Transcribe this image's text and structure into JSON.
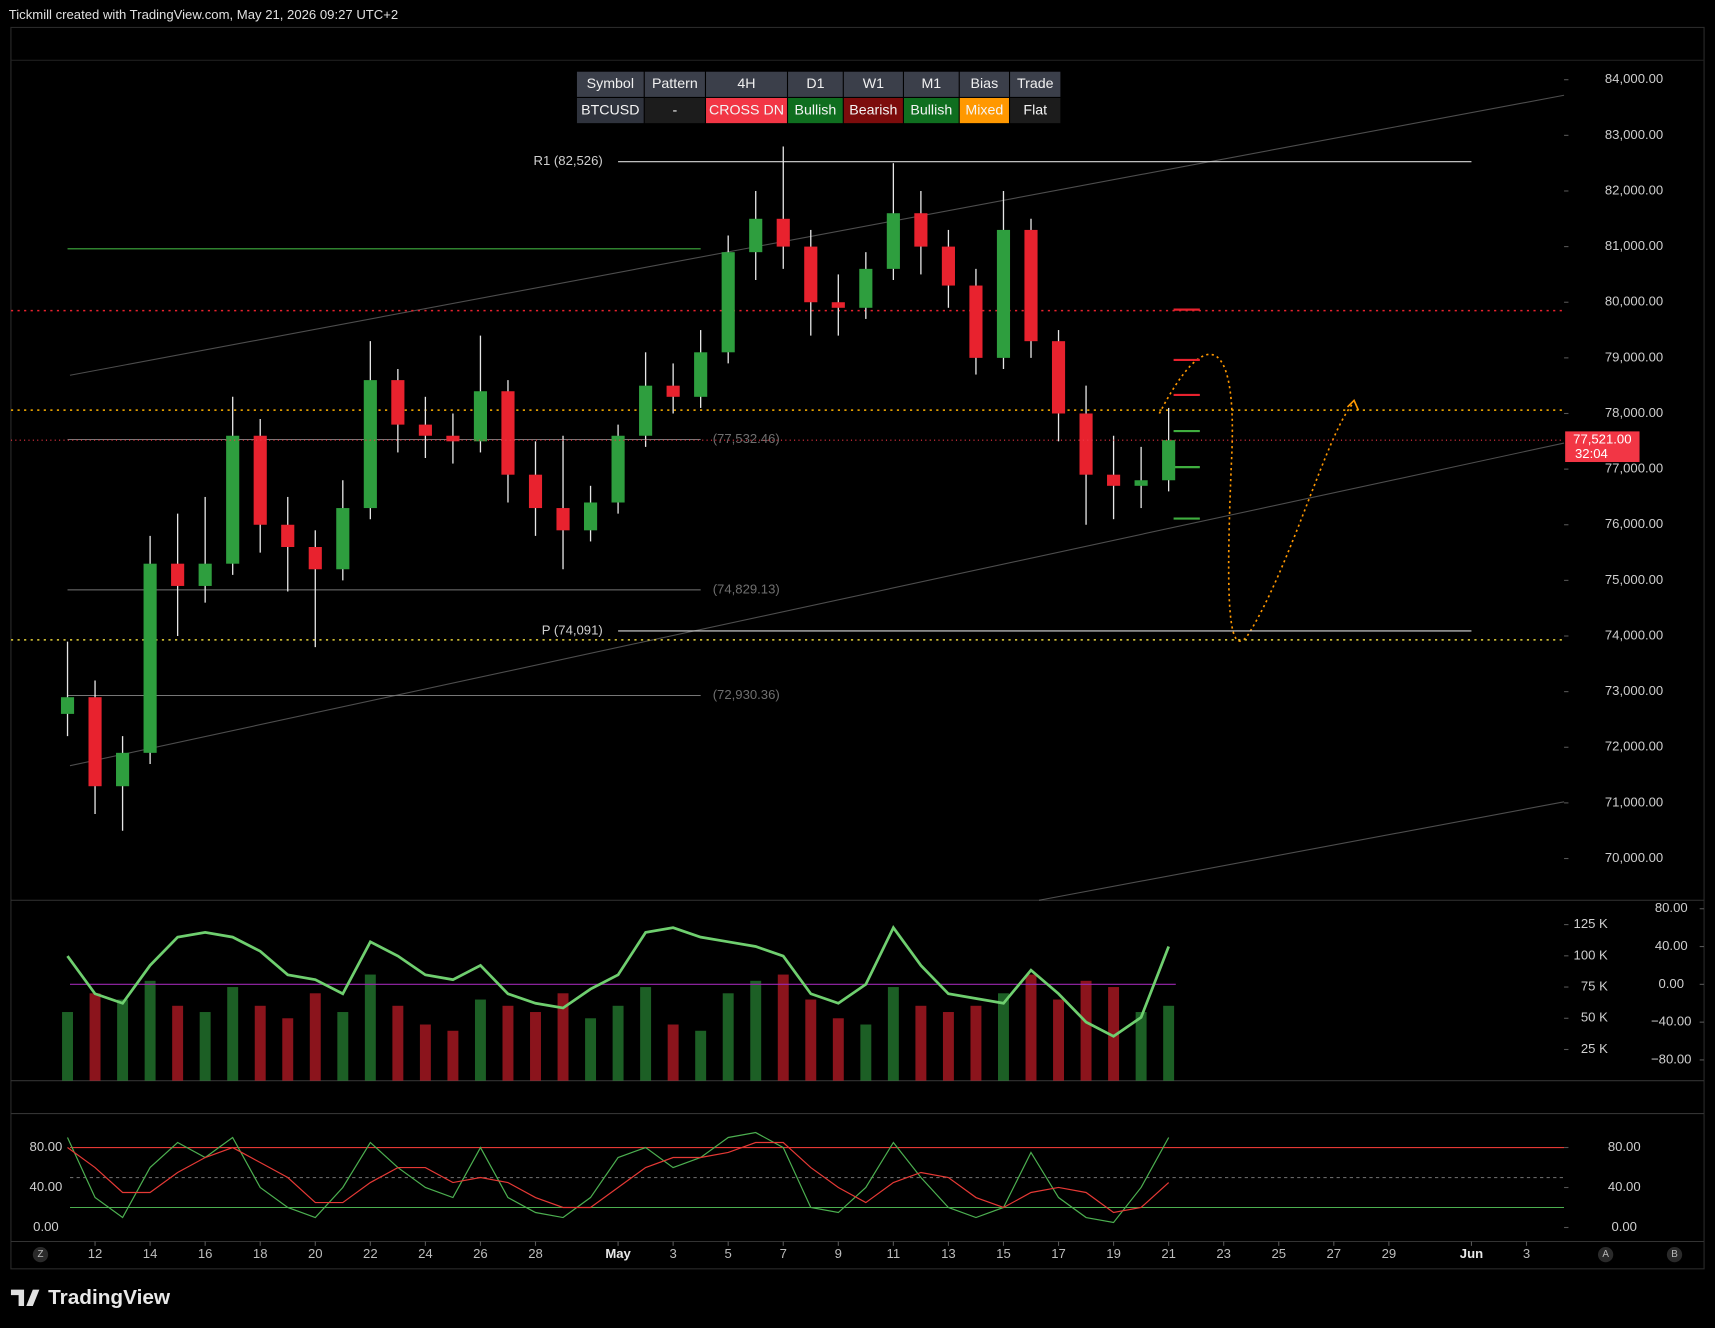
{
  "header": {
    "text": "Tickmill created with TradingView.com, May 21, 2026 09:27 UTC+2"
  },
  "table": {
    "headers": [
      "Symbol",
      "Pattern",
      "4H",
      "D1",
      "W1",
      "M1",
      "Bias",
      "Trade"
    ],
    "rows": [
      [
        "BTCUSD",
        "-",
        "CROSS DN",
        "Bullish",
        "Bearish",
        "Bullish",
        "Mixed",
        "Flat"
      ]
    ],
    "header_color": "#3b3f4a",
    "cell_colors": [
      [
        "#2f333d",
        "#1c1c1c",
        "#f23645",
        "#0f6e1f",
        "#7c0c0c",
        "#0f6e1f",
        "#ff9800",
        "#1c1c1c"
      ]
    ]
  },
  "chart_data": [
    {
      "type": "candlestick",
      "x": [
        "Apr 11",
        "Apr 12",
        "Apr 13",
        "Apr 14",
        "Apr 15",
        "Apr 16",
        "Apr 17",
        "Apr 18",
        "Apr 19",
        "Apr 20",
        "Apr 21",
        "Apr 22",
        "Apr 23",
        "Apr 24",
        "Apr 25",
        "Apr 26",
        "Apr 27",
        "Apr 28",
        "Apr 29",
        "Apr 30",
        "May 1",
        "May 2",
        "May 3",
        "May 4",
        "May 5",
        "May 6",
        "May 7",
        "May 8",
        "May 9",
        "May 10",
        "May 11",
        "May 12",
        "May 13",
        "May 14",
        "May 15",
        "May 16",
        "May 17",
        "May 18",
        "May 19",
        "May 20",
        "May 21"
      ],
      "open": [
        72600,
        72900,
        71300,
        71900,
        75300,
        74900,
        75300,
        77600,
        76000,
        75600,
        75200,
        76300,
        78600,
        77800,
        77600,
        77500,
        78400,
        76900,
        76300,
        75900,
        76400,
        77600,
        78500,
        78300,
        79100,
        80900,
        81500,
        81000,
        80000,
        79900,
        80600,
        81600,
        81000,
        80300,
        79000,
        81300,
        79300,
        78000,
        76900,
        76700,
        76800
      ],
      "high": [
        73900,
        73200,
        72200,
        75800,
        76200,
        76500,
        78300,
        77900,
        76500,
        75900,
        76800,
        79300,
        78800,
        78300,
        78000,
        79400,
        78600,
        77500,
        77600,
        76700,
        77800,
        79100,
        78900,
        79500,
        81200,
        82000,
        82800,
        81300,
        80500,
        80900,
        82500,
        82000,
        81300,
        80600,
        82000,
        81500,
        79500,
        78500,
        77600,
        77400,
        78100
      ],
      "low": [
        72200,
        70800,
        70500,
        71700,
        74000,
        74600,
        75100,
        75500,
        74800,
        73800,
        75000,
        76100,
        77300,
        77200,
        77100,
        77300,
        76400,
        75800,
        75200,
        75700,
        76200,
        77400,
        78000,
        78100,
        78900,
        80400,
        80600,
        79400,
        79400,
        79700,
        80400,
        80500,
        79900,
        78700,
        78800,
        79000,
        77500,
        76000,
        76100,
        76300,
        76600
      ],
      "close": [
        72900,
        71300,
        71900,
        75300,
        74900,
        75300,
        77600,
        76000,
        75600,
        75200,
        76300,
        78600,
        77800,
        77600,
        77500,
        78400,
        76900,
        76300,
        75900,
        76400,
        77600,
        78500,
        78300,
        79100,
        80900,
        81500,
        81000,
        80000,
        79900,
        80600,
        81600,
        81000,
        80300,
        79000,
        81300,
        79300,
        78000,
        76900,
        76700,
        76800,
        77521
      ],
      "up_color": "#2e9e3e",
      "down_color": "#e8222e",
      "wick_color": "#e6e6e6",
      "xlim": [
        "Apr 9",
        "Jun 5"
      ],
      "xticks": [
        {
          "value": "Apr 12",
          "label": "12"
        },
        {
          "value": "Apr 14",
          "label": "14"
        },
        {
          "value": "Apr 16",
          "label": "16"
        },
        {
          "value": "Apr 18",
          "label": "18"
        },
        {
          "value": "Apr 20",
          "label": "20"
        },
        {
          "value": "Apr 22",
          "label": "22"
        },
        {
          "value": "Apr 24",
          "label": "24"
        },
        {
          "value": "Apr 26",
          "label": "26"
        },
        {
          "value": "Apr 28",
          "label": "28"
        },
        {
          "value": "May 1",
          "label": "May"
        },
        {
          "value": "May 3",
          "label": "3"
        },
        {
          "value": "May 5",
          "label": "5"
        },
        {
          "value": "May 7",
          "label": "7"
        },
        {
          "value": "May 9",
          "label": "9"
        },
        {
          "value": "May 11",
          "label": "11"
        },
        {
          "value": "May 13",
          "label": "13"
        },
        {
          "value": "May 15",
          "label": "15"
        },
        {
          "value": "May 17",
          "label": "17"
        },
        {
          "value": "May 19",
          "label": "19"
        },
        {
          "value": "May 21",
          "label": "21"
        },
        {
          "value": "May 23",
          "label": "23"
        },
        {
          "value": "May 25",
          "label": "25"
        },
        {
          "value": "May 27",
          "label": "27"
        },
        {
          "value": "May 29",
          "label": "29"
        },
        {
          "value": "Jun 1",
          "label": "Jun"
        },
        {
          "value": "Jun 3",
          "label": "3"
        }
      ],
      "ylim": [
        69250,
        84350
      ],
      "yticks": [
        {
          "value": 70000,
          "label": "70,000.00"
        },
        {
          "value": 71000,
          "label": "71,000.00"
        },
        {
          "value": 72000,
          "label": "72,000.00"
        },
        {
          "value": 73000,
          "label": "73,000.00"
        },
        {
          "value": 74000,
          "label": "74,000.00"
        },
        {
          "value": 75000,
          "label": "75,000.00"
        },
        {
          "value": 76000,
          "label": "76,000.00"
        },
        {
          "value": 77000,
          "label": "77,000.00"
        },
        {
          "value": 78000,
          "label": "78,000.00"
        },
        {
          "value": 79000,
          "label": "79,000.00"
        },
        {
          "value": 80000,
          "label": "80,000.00"
        },
        {
          "value": 81000,
          "label": "81,000.00"
        },
        {
          "value": 82000,
          "label": "82,000.00"
        },
        {
          "value": 83000,
          "label": "83,000.00"
        },
        {
          "value": 84000,
          "label": "84,000.00"
        }
      ],
      "levels": [
        {
          "value": 82526,
          "label": "R1 (82,526)",
          "color": "#d8d8d8",
          "dash": "none",
          "from": "May 1",
          "to": "Jun 1"
        },
        {
          "value": 74091,
          "label": "P (74,091)",
          "color": "#d8d8d8",
          "dash": "none",
          "from": "May 1",
          "to": "Jun 1"
        },
        {
          "value": 77532.46,
          "label": "(77,532.46)",
          "color": "#777777",
          "dash": "none",
          "from": "Apr 11",
          "to": "May 4"
        },
        {
          "value": 74829.13,
          "label": "(74,829.13)",
          "color": "#777777",
          "dash": "none",
          "from": "Apr 11",
          "to": "May 4"
        },
        {
          "value": 72930.36,
          "label": "(72,930.36)",
          "color": "#777777",
          "dash": "none",
          "from": "Apr 11",
          "to": "May 4"
        },
        {
          "value": 80960,
          "color": "#3fae3f",
          "dash": "none",
          "from": "Apr 11",
          "to": "May 4"
        },
        {
          "value": 79850,
          "color": "#e8222e",
          "dash": "2 4"
        },
        {
          "value": 78060,
          "color": "#ffb300",
          "dash": "2 4"
        },
        {
          "value": 73930,
          "color": "#e6d23a",
          "dash": "2 4"
        }
      ],
      "last_price": {
        "value": 77521,
        "label": "77,521.00",
        "countdown": "32:04",
        "color": "#f23645"
      }
    },
    {
      "type": "bar",
      "values": [
        55000,
        70000,
        65000,
        80000,
        60000,
        55000,
        75000,
        60000,
        50000,
        70000,
        55000,
        85000,
        60000,
        45000,
        40000,
        65000,
        60000,
        55000,
        70000,
        50000,
        60000,
        75000,
        45000,
        40000,
        70000,
        80000,
        85000,
        65000,
        50000,
        45000,
        75000,
        60000,
        55000,
        60000,
        70000,
        85000,
        65000,
        80000,
        75000,
        55000,
        60000
      ],
      "ylim": [
        0,
        144500
      ],
      "yticks": [
        {
          "value": 25000,
          "label": "25 K"
        },
        {
          "value": 50000,
          "label": "50 K"
        },
        {
          "value": 75000,
          "label": "75 K"
        },
        {
          "value": 100000,
          "label": "100 K"
        },
        {
          "value": 125000,
          "label": "125 K"
        }
      ],
      "series": [
        {
          "color": "#6fcf6f",
          "axis": "y2",
          "values": [
            30,
            -10,
            -20,
            20,
            50,
            55,
            50,
            35,
            10,
            5,
            -10,
            45,
            30,
            10,
            5,
            20,
            -10,
            -20,
            -25,
            -5,
            10,
            55,
            60,
            50,
            45,
            40,
            30,
            -10,
            -20,
            0,
            60,
            20,
            -10,
            -15,
            -20,
            15,
            -10,
            -40,
            -55,
            -35,
            40
          ]
        }
      ],
      "y2lim": [
        -102,
        89
      ],
      "y2ticks": [
        {
          "value": 80,
          "label": "80.00"
        },
        {
          "value": 40,
          "label": "40.00"
        },
        {
          "value": 0,
          "label": "0.00"
        },
        {
          "value": -40,
          "label": "−40.00"
        },
        {
          "value": -80,
          "label": "−80.00"
        }
      ],
      "levels": [
        {
          "value": 0,
          "axis": "y2",
          "color": "#9c27b0"
        }
      ]
    },
    {
      "type": "line",
      "series": [
        {
          "color": "#4caf50",
          "values": [
            90,
            30,
            10,
            60,
            85,
            70,
            90,
            40,
            20,
            10,
            40,
            85,
            60,
            40,
            30,
            80,
            30,
            15,
            10,
            30,
            70,
            80,
            60,
            70,
            90,
            95,
            80,
            20,
            15,
            40,
            85,
            50,
            20,
            10,
            20,
            75,
            30,
            10,
            5,
            40,
            90
          ]
        },
        {
          "color": "#e53935",
          "values": [
            80,
            60,
            35,
            35,
            55,
            70,
            80,
            65,
            50,
            25,
            25,
            45,
            60,
            60,
            45,
            50,
            45,
            30,
            20,
            20,
            40,
            60,
            70,
            70,
            75,
            85,
            85,
            60,
            40,
            25,
            45,
            55,
            50,
            30,
            20,
            35,
            40,
            35,
            15,
            20,
            45
          ]
        }
      ],
      "ylim": [
        -14,
        114
      ],
      "yticks": [
        {
          "value": 0,
          "label": "0.00"
        },
        {
          "value": 40,
          "label": "40.00"
        },
        {
          "value": 80,
          "label": "80.00"
        }
      ],
      "levels": [
        {
          "value": 80,
          "color": "#e53935",
          "dash": "none"
        },
        {
          "value": 50,
          "color": "#666666",
          "dash": "3 3"
        },
        {
          "value": 20,
          "color": "#4caf50",
          "dash": "none"
        }
      ]
    }
  ],
  "axis_buttons": [
    "Z",
    "A",
    "B"
  ],
  "footer": {
    "logo": "TradingView"
  }
}
